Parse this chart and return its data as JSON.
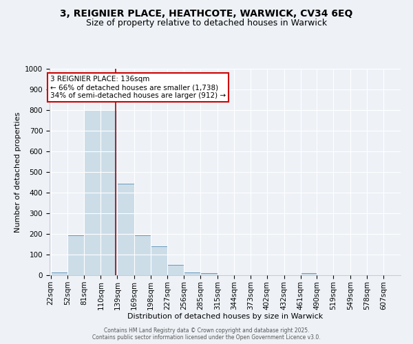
{
  "title_line1": "3, REIGNIER PLACE, HEATHCOTE, WARWICK, CV34 6EQ",
  "title_line2": "Size of property relative to detached houses in Warwick",
  "xlabel": "Distribution of detached houses by size in Warwick",
  "ylabel": "Number of detached properties",
  "bar_color": "#ccdde8",
  "bar_edgecolor": "#6699bb",
  "background_color": "#eef2f7",
  "grid_color": "#ffffff",
  "bins": [
    22,
    52,
    81,
    110,
    139,
    169,
    198,
    227,
    256,
    285,
    315,
    344,
    373,
    402,
    432,
    461,
    490,
    519,
    549,
    578,
    607
  ],
  "values": [
    15,
    195,
    800,
    800,
    445,
    195,
    140,
    50,
    15,
    10,
    0,
    0,
    0,
    0,
    0,
    10,
    0,
    0,
    0,
    0
  ],
  "property_size": 136,
  "red_line_color": "#aa0000",
  "annotation_text_line1": "3 REIGNIER PLACE: 136sqm",
  "annotation_text_line2": "← 66% of detached houses are smaller (1,738)",
  "annotation_text_line3": "34% of semi-detached houses are larger (912) →",
  "annotation_box_color": "#cc0000",
  "ylim": [
    0,
    1000
  ],
  "yticks": [
    0,
    100,
    200,
    300,
    400,
    500,
    600,
    700,
    800,
    900,
    1000
  ],
  "title_fontsize": 10,
  "subtitle_fontsize": 9,
  "axis_label_fontsize": 8,
  "tick_fontsize": 7.5,
  "footer_line1": "Contains HM Land Registry data © Crown copyright and database right 2025.",
  "footer_line2": "Contains public sector information licensed under the Open Government Licence v3.0."
}
